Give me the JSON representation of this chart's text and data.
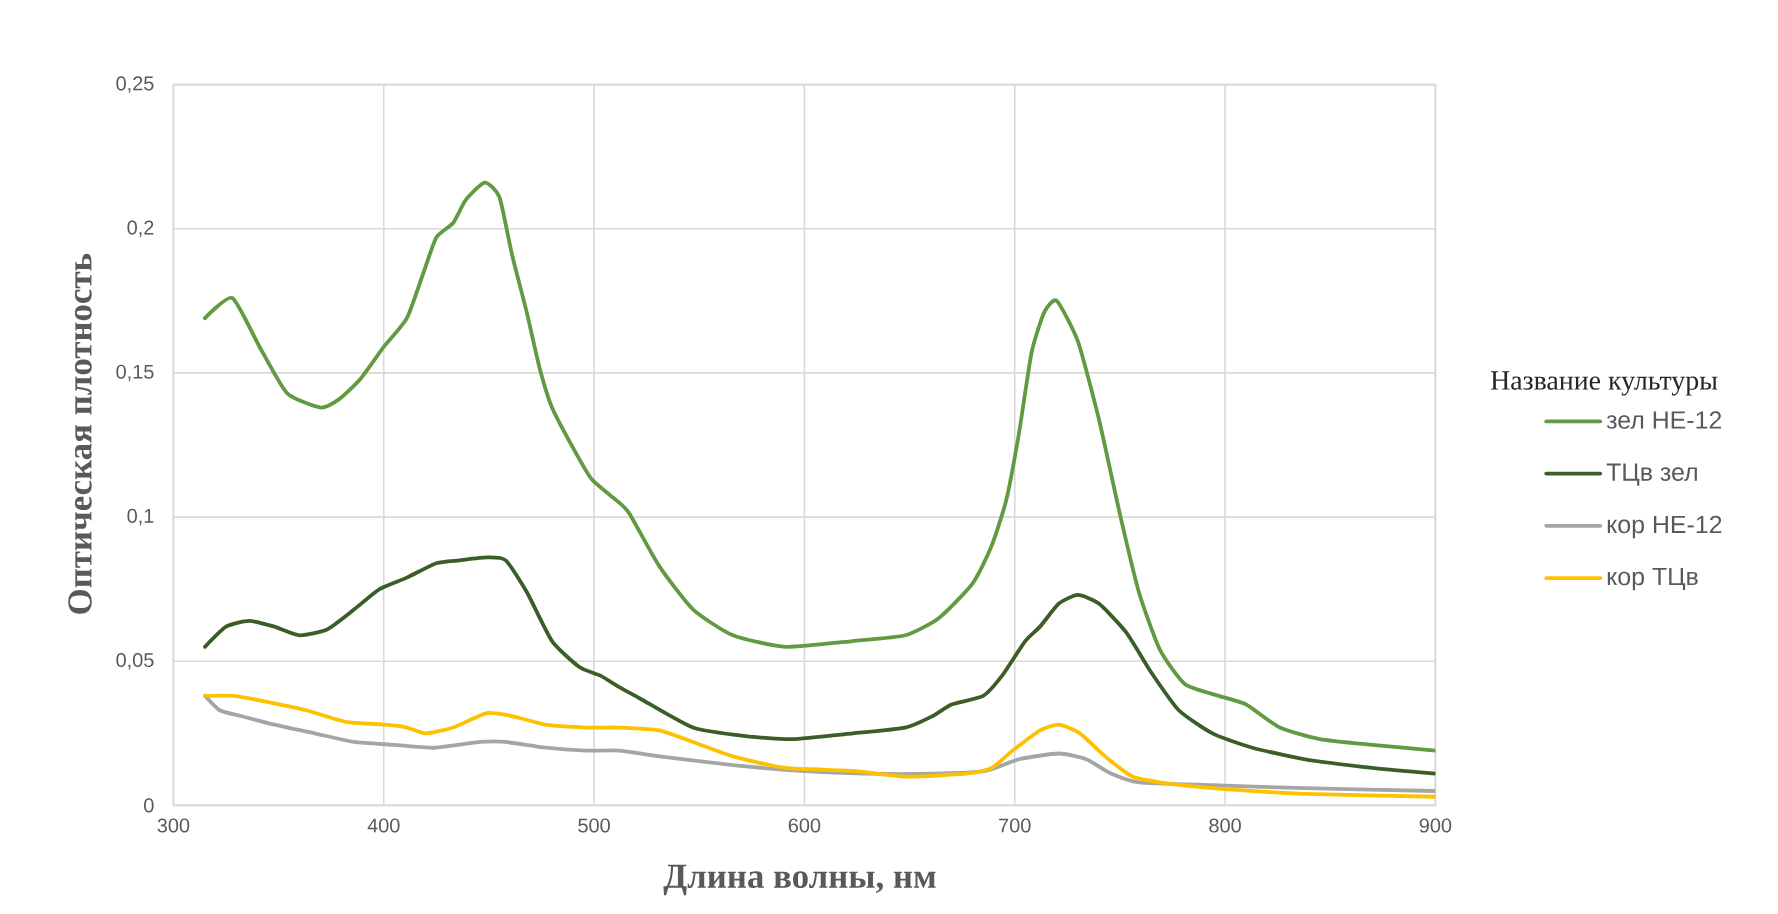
{
  "chart_data": {
    "type": "line",
    "xlabel": "Длина волны, нм",
    "ylabel": "Оптическая плотность",
    "legend_title": "Название культуры",
    "xlim": [
      300,
      900
    ],
    "ylim": [
      0,
      0.25
    ],
    "xticks": [
      300,
      400,
      500,
      600,
      700,
      800,
      900
    ],
    "yticks": [
      0,
      {
        "value": 0.05,
        "label": "0,05"
      },
      {
        "value": 0.1,
        "label": "0,1"
      },
      {
        "value": 0.15,
        "label": "0,15"
      },
      {
        "value": 0.2,
        "label": "0,2"
      },
      {
        "value": 0.25,
        "label": "0,25"
      }
    ],
    "grid": true,
    "legend": "right",
    "line_style": "solid",
    "series": [
      {
        "name": "зел НЕ-12",
        "color": "#629a42",
        "x": [
          315,
          328,
          341,
          354,
          370,
          379,
          389,
          400,
          411,
          419,
          425,
          433,
          439,
          448,
          455,
          461,
          468,
          474,
          480,
          490,
          499,
          512,
          517,
          531,
          547,
          566,
          591,
          623,
          648,
          664,
          680,
          689,
          696,
          702,
          708,
          714,
          720,
          730,
          740,
          750,
          759,
          769,
          781,
          797,
          810,
          826,
          845,
          870,
          900
        ],
        "values": [
          0.169,
          0.176,
          0.159,
          0.143,
          0.138,
          0.141,
          0.148,
          0.159,
          0.169,
          0.185,
          0.197,
          0.202,
          0.21,
          0.216,
          0.211,
          0.191,
          0.171,
          0.152,
          0.138,
          0.124,
          0.113,
          0.105,
          0.101,
          0.083,
          0.068,
          0.059,
          0.055,
          0.057,
          0.059,
          0.065,
          0.077,
          0.09,
          0.106,
          0.129,
          0.157,
          0.171,
          0.175,
          0.161,
          0.134,
          0.101,
          0.074,
          0.054,
          0.042,
          0.038,
          0.035,
          0.027,
          0.023,
          0.021,
          0.019
        ]
      },
      {
        "name": "ТЦв зел",
        "color": "#3b5e27",
        "x": [
          315,
          325,
          336,
          348,
          360,
          373,
          386,
          398,
          411,
          425,
          436,
          449,
          458,
          468,
          480,
          493,
          503,
          512,
          522,
          547,
          572,
          594,
          623,
          648,
          661,
          670,
          685,
          694,
          705,
          712,
          721,
          730,
          740,
          753,
          765,
          778,
          794,
          813,
          838,
          870,
          900
        ],
        "values": [
          0.055,
          0.062,
          0.064,
          0.062,
          0.059,
          0.061,
          0.068,
          0.075,
          0.079,
          0.084,
          0.085,
          0.086,
          0.085,
          0.074,
          0.057,
          0.048,
          0.045,
          0.041,
          0.037,
          0.027,
          0.024,
          0.023,
          0.025,
          0.027,
          0.031,
          0.035,
          0.038,
          0.045,
          0.057,
          0.062,
          0.07,
          0.073,
          0.07,
          0.06,
          0.046,
          0.033,
          0.025,
          0.02,
          0.016,
          0.013,
          0.011
        ]
      },
      {
        "name": "кор НЕ-12",
        "color": "#a5a5a5",
        "x": [
          315,
          322,
          332,
          348,
          367,
          386,
          405,
          424,
          446,
          458,
          477,
          496,
          512,
          531,
          566,
          598,
          629,
          661,
          686,
          702,
          721,
          734,
          746,
          759,
          794,
          838,
          900
        ],
        "values": [
          0.038,
          0.033,
          0.031,
          0.028,
          0.025,
          0.022,
          0.021,
          0.02,
          0.022,
          0.022,
          0.02,
          0.019,
          0.019,
          0.017,
          0.014,
          0.012,
          0.011,
          0.011,
          0.012,
          0.016,
          0.018,
          0.016,
          0.011,
          0.008,
          0.007,
          0.006,
          0.005
        ]
      },
      {
        "name": "кор ТЦв",
        "color": "#ffc000",
        "x": [
          315,
          329,
          344,
          363,
          382,
          401,
          411,
          420,
          433,
          449,
          461,
          477,
          496,
          512,
          531,
          547,
          566,
          591,
          623,
          648,
          677,
          689,
          699,
          712,
          721,
          731,
          743,
          756,
          769,
          794,
          838,
          900
        ],
        "values": [
          0.038,
          0.038,
          0.036,
          0.033,
          0.029,
          0.028,
          0.027,
          0.025,
          0.027,
          0.032,
          0.031,
          0.028,
          0.027,
          0.027,
          0.026,
          0.022,
          0.017,
          0.013,
          0.012,
          0.01,
          0.011,
          0.013,
          0.019,
          0.026,
          0.028,
          0.025,
          0.017,
          0.01,
          0.008,
          0.006,
          0.004,
          0.003
        ]
      }
    ]
  }
}
